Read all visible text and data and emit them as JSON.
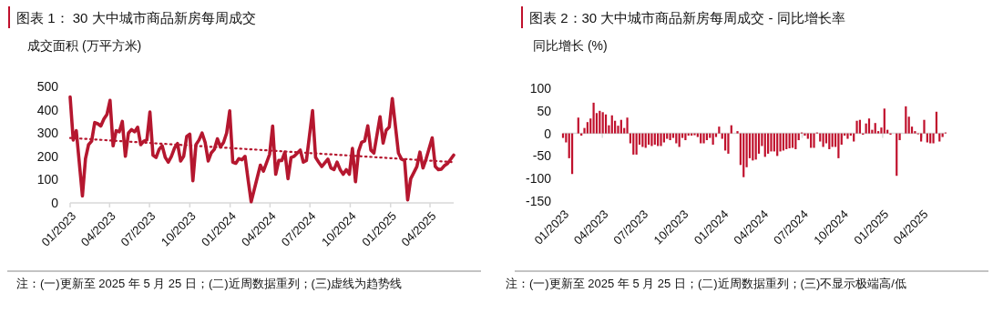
{
  "chart_data": [
    {
      "type": "line",
      "title": "图表 1： 30 大中城市商品新房每周成交",
      "ylabel": "成交面积 (万平方米)",
      "annotations": [
        "注：(一)更新至 2025 年 5 月 25 日；(二)近周数据重列；(三)虚线为趋势线"
      ],
      "xlim": [
        "2023-01-01",
        "2025-05-25"
      ],
      "xticks": [
        {
          "value": "2023-01-01",
          "label": "01/2023"
        },
        {
          "value": "2023-04-01",
          "label": "04/2023"
        },
        {
          "value": "2023-07-01",
          "label": "07/2023"
        },
        {
          "value": "2023-10-01",
          "label": "10/2023"
        },
        {
          "value": "2024-01-01",
          "label": "01/2024"
        },
        {
          "value": "2024-04-01",
          "label": "04/2024"
        },
        {
          "value": "2024-07-01",
          "label": "07/2024"
        },
        {
          "value": "2024-10-01",
          "label": "10/2024"
        },
        {
          "value": "2025-01-01",
          "label": "01/2025"
        },
        {
          "value": "2025-04-01",
          "label": "04/2025"
        }
      ],
      "ylim": [
        0,
        500
      ],
      "yticks": [
        0,
        100,
        200,
        300,
        400,
        500
      ],
      "series": [
        {
          "color": "#b5172f",
          "line_style": "solid",
          "x": [
            "2023-01-01",
            "2023-01-08",
            "2023-01-15",
            "2023-01-29",
            "2023-02-05",
            "2023-02-12",
            "2023-02-19",
            "2023-02-26",
            "2023-03-05",
            "2023-03-12",
            "2023-03-19",
            "2023-03-26",
            "2023-04-02",
            "2023-04-09",
            "2023-04-16",
            "2023-04-23",
            "2023-04-30",
            "2023-05-07",
            "2023-05-14",
            "2023-05-21",
            "2023-05-28",
            "2023-06-04",
            "2023-06-11",
            "2023-06-18",
            "2023-06-25",
            "2023-07-02",
            "2023-07-09",
            "2023-07-16",
            "2023-07-23",
            "2023-07-30",
            "2023-08-06",
            "2023-08-13",
            "2023-08-20",
            "2023-08-27",
            "2023-09-03",
            "2023-09-10",
            "2023-09-17",
            "2023-09-24",
            "2023-10-01",
            "2023-10-08",
            "2023-10-15",
            "2023-10-22",
            "2023-10-29",
            "2023-11-05",
            "2023-11-12",
            "2023-11-19",
            "2023-11-26",
            "2023-12-03",
            "2023-12-10",
            "2023-12-17",
            "2023-12-24",
            "2023-12-31",
            "2024-01-07",
            "2024-01-14",
            "2024-01-21",
            "2024-01-28",
            "2024-02-04",
            "2024-02-11",
            "2024-02-18",
            "2024-03-10",
            "2024-03-17",
            "2024-03-31",
            "2024-04-07",
            "2024-04-14",
            "2024-04-21",
            "2024-04-28",
            "2024-05-05",
            "2024-05-12",
            "2024-05-19",
            "2024-05-26",
            "2024-06-09",
            "2024-06-16",
            "2024-06-23",
            "2024-07-07",
            "2024-07-14",
            "2024-07-21",
            "2024-07-28",
            "2024-08-11",
            "2024-08-18",
            "2024-08-25",
            "2024-09-01",
            "2024-09-08",
            "2024-09-15",
            "2024-09-22",
            "2024-09-29",
            "2024-10-06",
            "2024-10-13",
            "2024-10-20",
            "2024-10-27",
            "2024-11-03",
            "2024-11-10",
            "2024-11-17",
            "2024-11-24",
            "2024-12-08",
            "2024-12-15",
            "2024-12-22",
            "2024-12-29",
            "2025-01-05",
            "2025-01-19",
            "2025-01-26",
            "2025-02-02",
            "2025-02-09",
            "2025-02-16",
            "2025-03-02",
            "2025-03-09",
            "2025-03-16",
            "2025-03-23",
            "2025-04-06",
            "2025-04-13",
            "2025-04-20",
            "2025-04-27",
            "2025-05-04",
            "2025-05-11",
            "2025-05-25"
          ],
          "values": [
            455,
            270,
            310,
            30,
            190,
            250,
            265,
            345,
            340,
            330,
            360,
            380,
            440,
            245,
            310,
            305,
            350,
            200,
            300,
            315,
            305,
            325,
            250,
            265,
            270,
            390,
            205,
            195,
            230,
            245,
            195,
            175,
            200,
            235,
            255,
            180,
            200,
            285,
            295,
            95,
            250,
            270,
            300,
            260,
            180,
            215,
            230,
            275,
            240,
            260,
            300,
            395,
            175,
            170,
            190,
            185,
            200,
            100,
            5,
            162,
            136,
            208,
            330,
            123,
            182,
            182,
            218,
            104,
            195,
            200,
            227,
            175,
            182,
            396,
            195,
            175,
            156,
            188,
            150,
            143,
            175,
            143,
            123,
            143,
            123,
            234,
            91,
            221,
            260,
            266,
            331,
            227,
            214,
            370,
            257,
            312,
            325,
            448,
            214,
            188,
            182,
            13,
            104,
            156,
            218,
            150,
            188,
            279,
            156,
            143,
            145,
            160,
            169,
            205
          ]
        },
        {
          "type": "line",
          "color": "#b5172f",
          "line_style": "dotted",
          "x": [
            "2023-01-01",
            "2025-05-25"
          ],
          "values": [
            279,
            175
          ]
        }
      ]
    },
    {
      "type": "bar",
      "title": "图表 2：30 大中城市商品新房每周成交 - 同比增长率",
      "ylabel": "同比增长 (%)",
      "annotations": [
        "注：(一)更新至 2025 年 5 月 25 日；(二)近周数据重列；(三)不显示极端高/低"
      ],
      "xlim": [
        "2023-01-01",
        "2025-05-25"
      ],
      "xticks": [
        {
          "value": "2023-01-01",
          "label": "01/2023"
        },
        {
          "value": "2023-04-01",
          "label": "04/2023"
        },
        {
          "value": "2023-07-01",
          "label": "07/2023"
        },
        {
          "value": "2023-10-01",
          "label": "10/2023"
        },
        {
          "value": "2024-01-01",
          "label": "01/2024"
        },
        {
          "value": "2024-04-01",
          "label": "04/2024"
        },
        {
          "value": "2024-07-01",
          "label": "07/2024"
        },
        {
          "value": "2024-10-01",
          "label": "10/2024"
        },
        {
          "value": "2025-01-01",
          "label": "01/2025"
        },
        {
          "value": "2025-04-01",
          "label": "04/2025"
        }
      ],
      "ylim": [
        -150,
        100
      ],
      "yticks": [
        -150,
        -100,
        -50,
        0,
        50,
        100
      ],
      "x": [
        "2023-01-01",
        "2023-01-08",
        "2023-01-15",
        "2023-01-22",
        "2023-01-29",
        "2023-02-05",
        "2023-02-12",
        "2023-02-19",
        "2023-02-26",
        "2023-03-05",
        "2023-03-12",
        "2023-03-19",
        "2023-03-26",
        "2023-04-02",
        "2023-04-09",
        "2023-04-16",
        "2023-04-23",
        "2023-04-30",
        "2023-05-07",
        "2023-05-14",
        "2023-05-21",
        "2023-05-28",
        "2023-06-04",
        "2023-06-11",
        "2023-06-18",
        "2023-06-25",
        "2023-07-02",
        "2023-07-09",
        "2023-07-16",
        "2023-07-23",
        "2023-07-30",
        "2023-08-06",
        "2023-08-13",
        "2023-08-20",
        "2023-08-27",
        "2023-09-03",
        "2023-09-10",
        "2023-09-17",
        "2023-09-24",
        "2023-10-01",
        "2023-10-08",
        "2023-10-15",
        "2023-10-22",
        "2023-10-29",
        "2023-11-05",
        "2023-11-12",
        "2023-11-19",
        "2023-11-26",
        "2023-12-03",
        "2023-12-10",
        "2023-12-17",
        "2023-12-24",
        "2023-12-31",
        "2024-01-07",
        "2024-01-14",
        "2024-01-21",
        "2024-01-28",
        "2024-02-04",
        "2024-02-11",
        "2024-02-18",
        "2024-02-25",
        "2024-03-03",
        "2024-03-10",
        "2024-03-17",
        "2024-03-24",
        "2024-03-31",
        "2024-04-07",
        "2024-04-14",
        "2024-04-21",
        "2024-04-28",
        "2024-05-05",
        "2024-05-12",
        "2024-05-19",
        "2024-05-26",
        "2024-06-02",
        "2024-06-09",
        "2024-06-16",
        "2024-06-23",
        "2024-06-30",
        "2024-07-07",
        "2024-07-14",
        "2024-07-21",
        "2024-07-28",
        "2024-08-04",
        "2024-08-11",
        "2024-08-18",
        "2024-08-25",
        "2024-09-01",
        "2024-09-08",
        "2024-09-15",
        "2024-09-22",
        "2024-09-29",
        "2024-10-06",
        "2024-10-13",
        "2024-10-20",
        "2024-10-27",
        "2024-11-03",
        "2024-11-10",
        "2024-11-17",
        "2024-11-24",
        "2024-12-01",
        "2024-12-08",
        "2024-12-15",
        "2024-12-22",
        "2024-12-29",
        "2025-01-05",
        "2025-01-12",
        "2025-01-19",
        "2025-01-26",
        "2025-02-02",
        "2025-02-09",
        "2025-02-16",
        "2025-02-23",
        "2025-03-02",
        "2025-03-09",
        "2025-03-16",
        "2025-03-23",
        "2025-03-30",
        "2025-04-06",
        "2025-04-13",
        "2025-04-20",
        "2025-04-27",
        "2025-05-04",
        "2025-05-11",
        "2025-05-18",
        "2025-05-25"
      ],
      "series": [
        {
          "color": "#c0102c",
          "values": [
            -10,
            -20,
            -55,
            -90,
            null,
            35,
            -5,
            12,
            25,
            33,
            68,
            45,
            50,
            47,
            42,
            18,
            40,
            28,
            17,
            30,
            12,
            35,
            -22,
            -47,
            -47,
            -25,
            -30,
            -32,
            -25,
            -28,
            -25,
            -28,
            -28,
            -20,
            -12,
            -15,
            -10,
            -22,
            -30,
            -10,
            -15,
            -5,
            -5,
            -4,
            -8,
            -22,
            -22,
            -15,
            -10,
            -25,
            -8,
            15,
            -12,
            -38,
            -45,
            18,
            null,
            5,
            -70,
            -97,
            -75,
            -55,
            -60,
            -58,
            -45,
            -28,
            -52,
            -45,
            -40,
            -40,
            -50,
            -40,
            -38,
            -35,
            -33,
            -32,
            -35,
            -15,
            2,
            -5,
            -12,
            -32,
            -32,
            2,
            -18,
            -30,
            -22,
            -35,
            -30,
            -30,
            -55,
            -25,
            -5,
            -12,
            -5,
            -18,
            28,
            30,
            -3,
            22,
            33,
            8,
            23,
            5,
            13,
            55,
            8,
            -3,
            null,
            -94,
            -15,
            null,
            60,
            37,
            15,
            5,
            -2,
            -18,
            30,
            -20,
            -22,
            -22,
            48,
            -18,
            -8,
            2
          ]
        }
      ]
    }
  ]
}
